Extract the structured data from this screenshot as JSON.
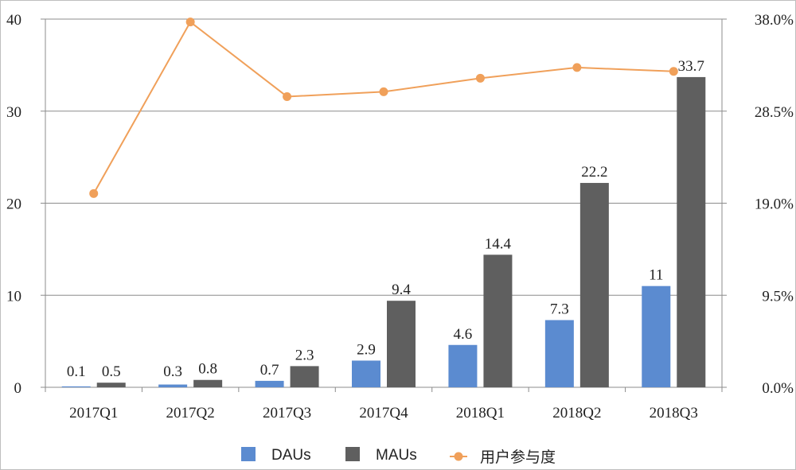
{
  "chart_data": {
    "type": "bar",
    "categories": [
      "2017Q1",
      "2017Q2",
      "2017Q3",
      "2017Q4",
      "2018Q1",
      "2018Q2",
      "2018Q3"
    ],
    "series": [
      {
        "name": "DAUs",
        "type": "bar",
        "axis": "left",
        "color": "#5b8bd0",
        "values": [
          0.1,
          0.3,
          0.7,
          2.9,
          4.6,
          7.3,
          11
        ],
        "labels": [
          "0.1",
          "0.3",
          "0.7",
          "2.9",
          "4.6",
          "7.3",
          "11"
        ]
      },
      {
        "name": "MAUs",
        "type": "bar",
        "axis": "left",
        "color": "#5f5f5f",
        "values": [
          0.5,
          0.8,
          2.3,
          9.4,
          14.4,
          22.2,
          33.7
        ],
        "labels": [
          "0.5",
          "0.8",
          "2.3",
          "9.4",
          "14.4",
          "22.2",
          "33.7"
        ]
      },
      {
        "name": "用户参与度",
        "type": "line",
        "axis": "right",
        "color": "#f0a05a",
        "values": [
          20.0,
          37.7,
          30.0,
          30.5,
          31.9,
          33.0,
          32.6
        ]
      }
    ],
    "left_axis": {
      "ylim": [
        0,
        40
      ],
      "ticks": [
        "0",
        "10",
        "20",
        "30",
        "40"
      ]
    },
    "right_axis": {
      "ylim": [
        0,
        38
      ],
      "ticks": [
        "0.0%",
        "9.5%",
        "19.0%",
        "28.5%",
        "38.0%"
      ]
    },
    "grid": true,
    "legend": "bottom",
    "title": "",
    "xlabel": "",
    "ylabel": ""
  }
}
